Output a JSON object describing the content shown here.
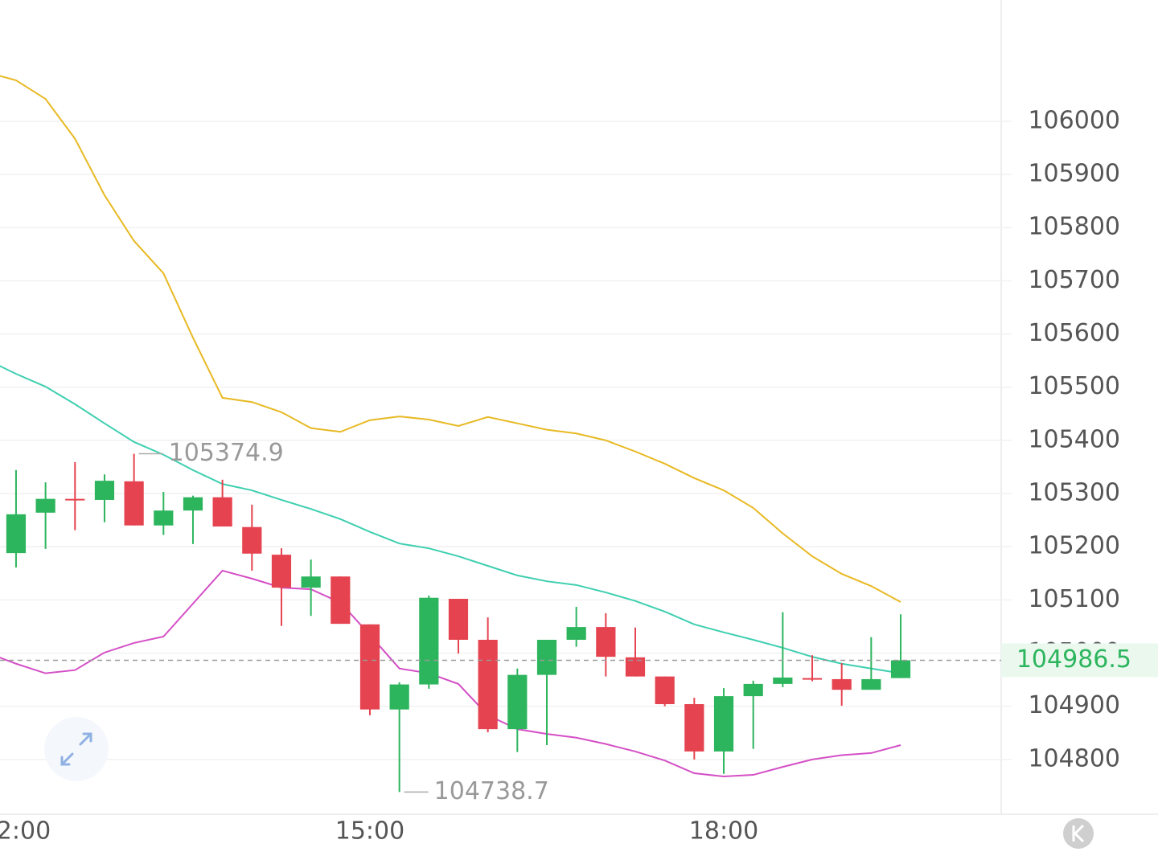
{
  "chart_data": {
    "type": "candlestick",
    "up_color": "#2db55d",
    "down_color": "#e5434f",
    "grid": true,
    "xlim": [
      11.864,
      20.352
    ],
    "xticks": [
      {
        "value": 12,
        "label": "12:00"
      },
      {
        "value": 15,
        "label": "15:00"
      },
      {
        "value": 18,
        "label": "18:00"
      }
    ],
    "ylim": [
      104697,
      106228
    ],
    "yticks": [
      104800,
      104900,
      105000,
      105100,
      105200,
      105300,
      105400,
      105500,
      105600,
      105700,
      105800,
      105900,
      106000
    ],
    "candles": {
      "x": [
        12,
        12.25,
        12.5,
        12.75,
        13,
        13.25,
        13.5,
        13.75,
        14,
        14.25,
        14.5,
        14.75,
        15,
        15.25,
        15.5,
        15.75,
        16,
        16.25,
        16.5,
        16.75,
        17,
        17.25,
        17.5,
        17.75,
        18,
        18.25,
        18.5,
        18.75,
        19,
        19.25,
        19.5
      ],
      "open": [
        105188,
        105264,
        105290,
        105288,
        105323,
        105240,
        105268,
        105293,
        105237,
        105185,
        105123,
        105144,
        105054,
        104894,
        104941,
        105102,
        105025,
        104857,
        104959,
        105025,
        105049,
        104992,
        104956,
        104904,
        104815,
        104919,
        104942,
        104953,
        104951,
        104931,
        104953
      ],
      "high": [
        105344,
        105321,
        105359,
        105336,
        105374.9,
        105303,
        105296,
        105326,
        105279,
        105197,
        105176,
        105144,
        105054,
        104945,
        105108,
        105102,
        105067,
        104971,
        105025,
        105087,
        105075,
        105048,
        104956,
        104916,
        104934,
        104948,
        105077,
        104996,
        104981,
        105030,
        105073
      ],
      "low": [
        105161,
        105196,
        105231,
        105246,
        105240,
        105222,
        105205,
        105238,
        105155,
        105051,
        105070,
        105055,
        104883,
        104738.7,
        104933,
        104999,
        104851,
        104814,
        104827,
        105012,
        104956,
        104956,
        104900,
        104800,
        104773,
        104820,
        104936,
        104947,
        104901,
        104931,
        104953
      ],
      "close": [
        105261,
        105290,
        105287,
        105324,
        105240,
        105268,
        105293,
        105238,
        105187,
        105123,
        105144,
        105055,
        104894,
        104941,
        105104,
        105025,
        104857,
        104959,
        105025,
        105049,
        104993,
        104956,
        104904,
        104815,
        104919,
        104942,
        104954,
        104951,
        104931,
        104951,
        104986.5
      ]
    },
    "series": [
      {
        "color": "#e8b923",
        "x": [
          11.75,
          12,
          12.25,
          12.5,
          12.75,
          13,
          13.25,
          13.5,
          13.75,
          14,
          14.25,
          14.5,
          14.75,
          15,
          15.25,
          15.5,
          15.75,
          16,
          16.25,
          16.5,
          16.75,
          17,
          17.25,
          17.5,
          17.75,
          18,
          18.25,
          18.5,
          18.75,
          19,
          19.25,
          19.5
        ],
        "values": [
          106092,
          106077,
          106042,
          105967,
          105861,
          105775,
          105714,
          105593,
          105480,
          105472,
          105453,
          105423,
          105416,
          105438,
          105445,
          105439,
          105427,
          105444,
          105432,
          105420,
          105413,
          105400,
          105379,
          105356,
          105329,
          105306,
          105273,
          105225,
          105182,
          105149,
          105126,
          105096
        ]
      },
      {
        "color": "#3ecfb0",
        "x": [
          11.75,
          12,
          12.25,
          12.5,
          12.75,
          13,
          13.25,
          13.5,
          13.75,
          14,
          14.25,
          14.5,
          14.75,
          15,
          15.25,
          15.5,
          15.75,
          16,
          16.25,
          16.5,
          16.75,
          17,
          17.25,
          17.5,
          17.75,
          18,
          18.25,
          18.5,
          18.75,
          19,
          19.25,
          19.5
        ],
        "values": [
          105552,
          105525,
          105501,
          105468,
          105432,
          105397,
          105373,
          105344,
          105318,
          105306,
          105288,
          105271,
          105252,
          105228,
          105206,
          105197,
          105182,
          105164,
          105146,
          105135,
          105128,
          105114,
          105098,
          105078,
          105054,
          105039,
          105025,
          105010,
          104993,
          104980,
          104971,
          104962
        ]
      },
      {
        "color": "#d44fc6",
        "x": [
          11.75,
          12,
          12.25,
          12.5,
          12.75,
          13,
          13.25,
          13.5,
          13.75,
          14,
          14.25,
          14.5,
          14.75,
          15,
          15.25,
          15.5,
          15.75,
          16,
          16.25,
          16.5,
          16.75,
          17,
          17.25,
          17.5,
          17.75,
          18,
          18.25,
          18.5,
          18.75,
          19,
          19.25,
          19.5
        ],
        "values": [
          105001,
          104980,
          104962,
          104968,
          105001,
          105019,
          105031,
          105093,
          105155,
          105140,
          105123,
          105120,
          105095,
          105034,
          104971,
          104962,
          104942,
          104883,
          104857,
          104848,
          104841,
          104829,
          104815,
          104798,
          104774,
          104768,
          104771,
          104786,
          104800,
          104808,
          104812,
          104827
        ]
      }
    ]
  }
}
